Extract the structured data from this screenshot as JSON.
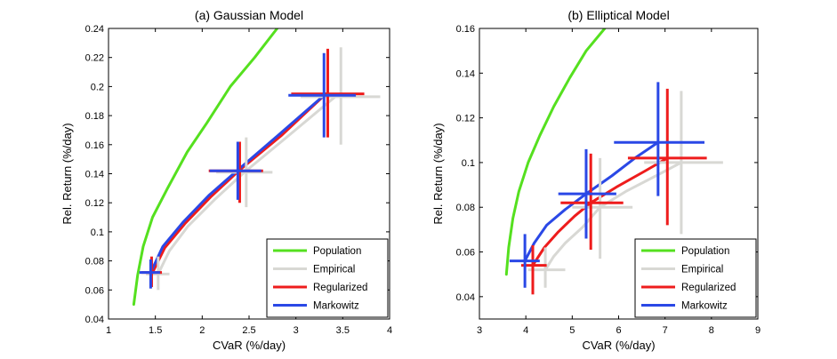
{
  "colors": {
    "Population": "#55e01f",
    "Empirical": "#d8d8d4",
    "Regularized": "#ee1c1c",
    "Markowitz": "#2a48e6"
  },
  "chart_data": [
    {
      "type": "line",
      "title": "(a) Gaussian Model",
      "xlabel": "CVaR (%/day)",
      "ylabel": "Rel. Return (%/day)",
      "xlim": [
        1,
        4
      ],
      "ylim": [
        0.04,
        0.24
      ],
      "xticks": [
        "1",
        "1.5",
        "2",
        "2.5",
        "3",
        "3.5",
        "4"
      ],
      "yticks": [
        "0.04",
        "0.06",
        "0.08",
        "0.1",
        "0.12",
        "0.14",
        "0.16",
        "0.18",
        "0.2",
        "0.22",
        "0.24"
      ],
      "legend_position": "bottom-right",
      "series": [
        {
          "name": "Population",
          "x": [
            1.27,
            1.31,
            1.37,
            1.47,
            1.63,
            1.84,
            2.05,
            2.3,
            2.56,
            2.8
          ],
          "y": [
            0.05,
            0.07,
            0.09,
            0.11,
            0.13,
            0.155,
            0.175,
            0.2,
            0.22,
            0.24
          ]
        },
        {
          "name": "Empirical",
          "x": [
            1.53,
            1.65,
            1.85,
            2.13,
            2.45,
            2.9,
            3.42
          ],
          "y": [
            0.071,
            0.087,
            0.104,
            0.122,
            0.141,
            0.165,
            0.193
          ]
        },
        {
          "name": "Regularized",
          "x": [
            1.47,
            1.6,
            1.82,
            2.09,
            2.39,
            2.84,
            3.32
          ],
          "y": [
            0.072,
            0.089,
            0.106,
            0.124,
            0.142,
            0.166,
            0.195
          ]
        },
        {
          "name": "Markowitz",
          "x": [
            1.45,
            1.58,
            1.8,
            2.07,
            2.37,
            2.82,
            3.3
          ],
          "y": [
            0.072,
            0.09,
            0.107,
            0.125,
            0.142,
            0.167,
            0.194
          ]
        }
      ],
      "error_crosses": [
        {
          "series": "Empirical",
          "x": 1.53,
          "y": 0.071,
          "x_range": [
            1.4,
            1.65
          ],
          "y_range": [
            0.06,
            0.083
          ]
        },
        {
          "series": "Regularized",
          "x": 1.46,
          "y": 0.072,
          "x_range": [
            1.35,
            1.57
          ],
          "y_range": [
            0.062,
            0.083
          ]
        },
        {
          "series": "Markowitz",
          "x": 1.45,
          "y": 0.072,
          "x_range": [
            1.33,
            1.55
          ],
          "y_range": [
            0.061,
            0.081
          ]
        },
        {
          "series": "Empirical",
          "x": 2.47,
          "y": 0.141,
          "x_range": [
            2.15,
            2.75
          ],
          "y_range": [
            0.117,
            0.165
          ]
        },
        {
          "series": "Regularized",
          "x": 2.4,
          "y": 0.142,
          "x_range": [
            2.07,
            2.65
          ],
          "y_range": [
            0.12,
            0.162
          ]
        },
        {
          "series": "Markowitz",
          "x": 2.38,
          "y": 0.142,
          "x_range": [
            2.08,
            2.63
          ],
          "y_range": [
            0.122,
            0.162
          ]
        },
        {
          "series": "Empirical",
          "x": 3.48,
          "y": 0.193,
          "x_range": [
            3.05,
            3.9
          ],
          "y_range": [
            0.16,
            0.227
          ]
        },
        {
          "series": "Regularized",
          "x": 3.34,
          "y": 0.195,
          "x_range": [
            2.95,
            3.73
          ],
          "y_range": [
            0.165,
            0.226
          ]
        },
        {
          "series": "Markowitz",
          "x": 3.3,
          "y": 0.194,
          "x_range": [
            2.92,
            3.64
          ],
          "y_range": [
            0.165,
            0.223
          ]
        }
      ]
    },
    {
      "type": "line",
      "title": "(b) Elliptical Model",
      "xlabel": "CVaR (%/day)",
      "ylabel": "Rel. Return (%/day)",
      "xlim": [
        3,
        9
      ],
      "ylim": [
        0.03,
        0.16
      ],
      "xticks": [
        "3",
        "4",
        "5",
        "6",
        "7",
        "8",
        "9"
      ],
      "yticks": [
        "0.04",
        "0.06",
        "0.08",
        "0.1",
        "0.12",
        "0.14",
        "0.16"
      ],
      "legend_position": "bottom-right",
      "series": [
        {
          "name": "Population",
          "x": [
            3.58,
            3.63,
            3.72,
            3.85,
            4.05,
            4.3,
            4.6,
            4.95,
            5.3,
            5.7
          ],
          "y": [
            0.05,
            0.062,
            0.075,
            0.087,
            0.1,
            0.112,
            0.125,
            0.138,
            0.15,
            0.16
          ]
        },
        {
          "name": "Empirical",
          "x": [
            4.42,
            4.6,
            4.85,
            5.22,
            5.6,
            6.15,
            6.8,
            7.35
          ],
          "y": [
            0.052,
            0.058,
            0.064,
            0.071,
            0.08,
            0.087,
            0.094,
            0.1
          ]
        },
        {
          "name": "Regularized",
          "x": [
            4.15,
            4.4,
            4.7,
            5.05,
            5.4,
            5.95,
            6.55,
            7.05
          ],
          "y": [
            0.054,
            0.062,
            0.069,
            0.076,
            0.082,
            0.089,
            0.096,
            0.102
          ]
        },
        {
          "name": "Markowitz",
          "x": [
            3.98,
            4.18,
            4.45,
            4.85,
            5.3,
            5.85,
            6.35,
            6.85
          ],
          "y": [
            0.056,
            0.064,
            0.072,
            0.079,
            0.086,
            0.094,
            0.102,
            0.109
          ]
        }
      ],
      "error_crosses": [
        {
          "series": "Empirical",
          "x": 4.42,
          "y": 0.052,
          "x_range": [
            4.05,
            4.85
          ],
          "y_range": [
            0.044,
            0.062
          ]
        },
        {
          "series": "Regularized",
          "x": 4.15,
          "y": 0.054,
          "x_range": [
            3.9,
            4.45
          ],
          "y_range": [
            0.041,
            0.063
          ]
        },
        {
          "series": "Markowitz",
          "x": 3.98,
          "y": 0.056,
          "x_range": [
            3.65,
            4.3
          ],
          "y_range": [
            0.044,
            0.068
          ]
        },
        {
          "series": "Empirical",
          "x": 5.6,
          "y": 0.08,
          "x_range": [
            5.0,
            6.3
          ],
          "y_range": [
            0.057,
            0.102
          ]
        },
        {
          "series": "Regularized",
          "x": 5.4,
          "y": 0.082,
          "x_range": [
            4.75,
            6.1
          ],
          "y_range": [
            0.061,
            0.104
          ]
        },
        {
          "series": "Markowitz",
          "x": 5.3,
          "y": 0.086,
          "x_range": [
            4.7,
            5.95
          ],
          "y_range": [
            0.066,
            0.106
          ]
        },
        {
          "series": "Empirical",
          "x": 7.35,
          "y": 0.1,
          "x_range": [
            6.55,
            8.25
          ],
          "y_range": [
            0.068,
            0.132
          ]
        },
        {
          "series": "Regularized",
          "x": 7.05,
          "y": 0.102,
          "x_range": [
            6.2,
            7.9
          ],
          "y_range": [
            0.072,
            0.133
          ]
        },
        {
          "series": "Markowitz",
          "x": 6.85,
          "y": 0.109,
          "x_range": [
            5.9,
            7.85
          ],
          "y_range": [
            0.085,
            0.136
          ]
        }
      ]
    }
  ]
}
